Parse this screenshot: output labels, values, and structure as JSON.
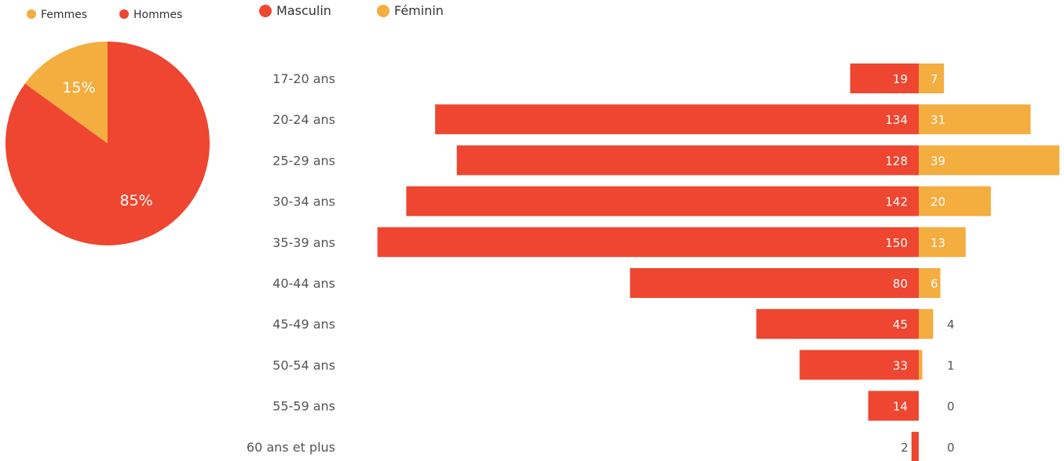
{
  "colors": {
    "male": "#ee4630",
    "female": "#f4ad3f"
  },
  "chart_data": [
    {
      "type": "pie",
      "legend": [
        {
          "label": "Femmes",
          "color": "#f4ad3f"
        },
        {
          "label": "Hommes",
          "color": "#ee4630"
        }
      ],
      "slices": [
        {
          "name": "Femmes",
          "value": 15,
          "label": "15%",
          "color": "#f4ad3f"
        },
        {
          "name": "Hommes",
          "value": 85,
          "label": "85%",
          "color": "#ee4630"
        }
      ]
    },
    {
      "type": "bar",
      "orientation": "horizontal-diverging",
      "legend": [
        {
          "label": "Masculin",
          "color": "#ee4630"
        },
        {
          "label": "Féminin",
          "color": "#f4ad3f"
        }
      ],
      "categories": [
        "17-20 ans",
        "20-24 ans",
        "25-29 ans",
        "30-34 ans",
        "35-39 ans",
        "40-44 ans",
        "45-49 ans",
        "50-54 ans",
        "55-59 ans",
        "60 ans et plus"
      ],
      "series": [
        {
          "name": "Masculin",
          "color": "#ee4630",
          "values": [
            19,
            134,
            128,
            142,
            150,
            80,
            45,
            33,
            14,
            2
          ]
        },
        {
          "name": "Féminin",
          "color": "#f4ad3f",
          "values": [
            7,
            31,
            39,
            20,
            13,
            6,
            4,
            1,
            0,
            0
          ]
        }
      ]
    }
  ]
}
